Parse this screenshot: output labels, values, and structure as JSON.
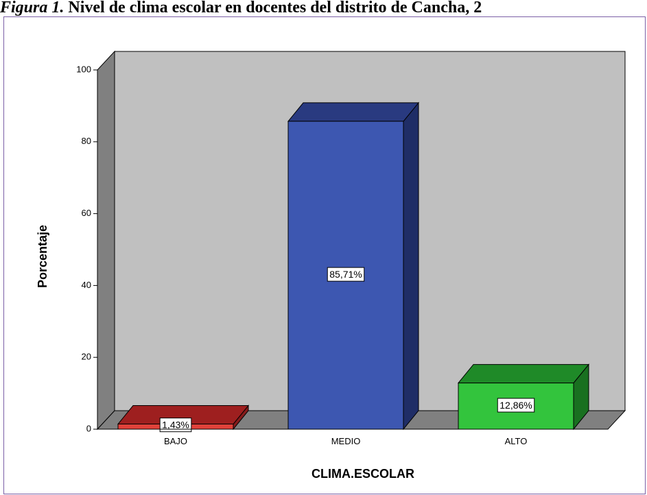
{
  "caption": {
    "lead": "Figura 1.",
    "rest": " Nivel de clima escolar en docentes del distrito de Cancha, 2"
  },
  "chart_data": {
    "type": "bar",
    "categories": [
      "BAJO",
      "MEDIO",
      "ALTO"
    ],
    "values": [
      1.43,
      85.71,
      12.86
    ],
    "data_labels": [
      "1,43%",
      "85,71%",
      "12,86%"
    ],
    "xlabel": "CLIMA.ESCOLAR",
    "ylabel": "Porcentaje",
    "ylim": [
      0,
      100
    ],
    "yticks": [
      0,
      20,
      40,
      60,
      80,
      100
    ],
    "grid": false,
    "three_d": true,
    "colors": {
      "front": [
        "#e0413a",
        "#3d57b1",
        "#33c43d"
      ],
      "top": [
        "#9e1f1f",
        "#293a80",
        "#1f8a28"
      ],
      "side": [
        "#861b1b",
        "#1f2d66",
        "#197020"
      ],
      "back_wall": "#c0c0c0",
      "side_wall": "#808080",
      "floor": "#808080"
    }
  }
}
